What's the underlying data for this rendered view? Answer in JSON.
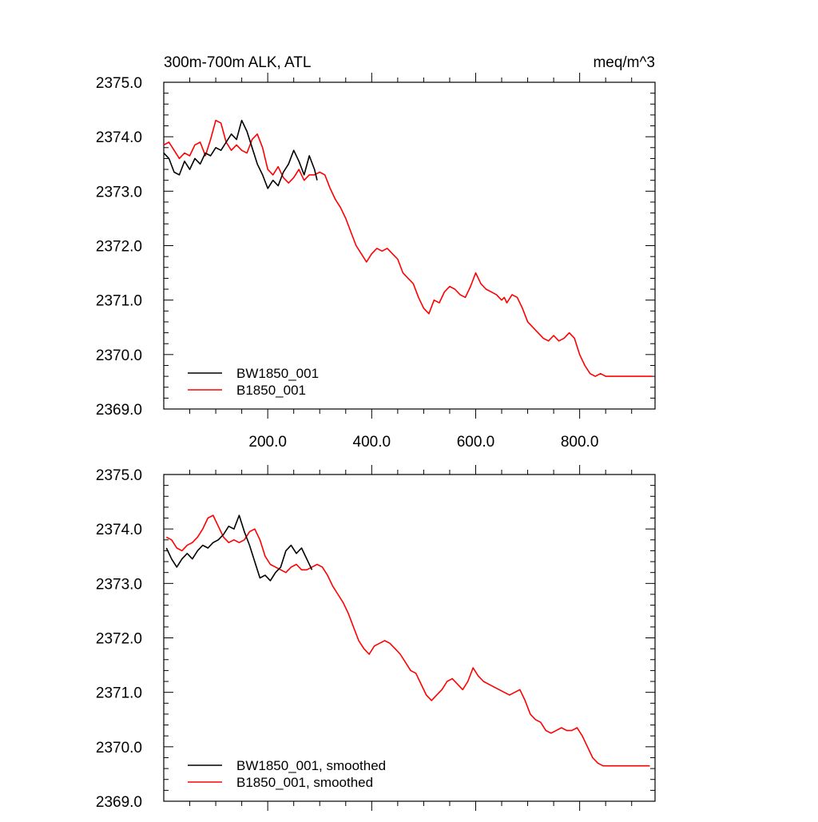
{
  "figure": {
    "title_left": "300m-700m ALK, ATL",
    "title_right": "meq/m^3"
  },
  "chart_data": [
    {
      "type": "line",
      "panel": "top",
      "title": "300m-700m ALK, ATL",
      "units": "meq/m^3",
      "xlim": [
        0,
        945
      ],
      "ylim": [
        2369.0,
        2375.0
      ],
      "xticks": [
        200,
        400,
        600,
        800
      ],
      "xtick_labels": [
        "200.0",
        "400.0",
        "600.0",
        "800.0"
      ],
      "yticks": [
        2369,
        2370,
        2371,
        2372,
        2373,
        2374,
        2375
      ],
      "ytick_labels": [
        "2369.0",
        "2370.0",
        "2371.0",
        "2372.0",
        "2373.0",
        "2374.0",
        "2375.0"
      ],
      "legend": "bottom-left",
      "series": [
        {
          "name": "BW1850_001",
          "color": "#000000",
          "x": [
            0,
            10,
            20,
            30,
            40,
            50,
            60,
            70,
            80,
            90,
            100,
            110,
            120,
            130,
            140,
            150,
            160,
            170,
            180,
            190,
            200,
            210,
            220,
            230,
            240,
            250,
            260,
            270,
            280,
            290,
            295
          ],
          "y": [
            2373.7,
            2373.6,
            2373.35,
            2373.3,
            2373.55,
            2373.4,
            2373.6,
            2373.5,
            2373.7,
            2373.65,
            2373.8,
            2373.75,
            2373.9,
            2374.05,
            2373.95,
            2374.3,
            2374.1,
            2373.8,
            2373.5,
            2373.3,
            2373.05,
            2373.2,
            2373.1,
            2373.35,
            2373.5,
            2373.75,
            2373.55,
            2373.3,
            2373.65,
            2373.4,
            2373.2
          ]
        },
        {
          "name": "B1850_001",
          "color": "#ff0000",
          "x": [
            0,
            10,
            20,
            30,
            40,
            50,
            60,
            70,
            80,
            90,
            100,
            110,
            120,
            130,
            140,
            150,
            160,
            170,
            180,
            190,
            200,
            210,
            220,
            230,
            240,
            250,
            260,
            270,
            280,
            290,
            300,
            310,
            320,
            330,
            340,
            350,
            360,
            370,
            380,
            390,
            400,
            410,
            420,
            430,
            440,
            450,
            460,
            470,
            480,
            490,
            500,
            510,
            520,
            530,
            540,
            550,
            560,
            570,
            580,
            590,
            600,
            610,
            620,
            630,
            640,
            650,
            655,
            660,
            670,
            680,
            690,
            700,
            710,
            720,
            730,
            740,
            750,
            760,
            770,
            780,
            790,
            800,
            810,
            820,
            830,
            840,
            850,
            860,
            870,
            880,
            890,
            900,
            910,
            920,
            930,
            940
          ],
          "y": [
            2373.85,
            2373.9,
            2373.75,
            2373.6,
            2373.7,
            2373.65,
            2373.85,
            2373.9,
            2373.65,
            2373.95,
            2374.3,
            2374.25,
            2373.9,
            2373.75,
            2373.85,
            2373.75,
            2373.7,
            2373.95,
            2374.05,
            2373.8,
            2373.4,
            2373.3,
            2373.45,
            2373.25,
            2373.15,
            2373.25,
            2373.4,
            2373.2,
            2373.3,
            2373.3,
            2373.35,
            2373.3,
            2373.05,
            2372.85,
            2372.7,
            2372.5,
            2372.25,
            2372.0,
            2371.85,
            2371.7,
            2371.85,
            2371.95,
            2371.9,
            2371.95,
            2371.85,
            2371.75,
            2371.5,
            2371.4,
            2371.3,
            2371.05,
            2370.85,
            2370.75,
            2371.0,
            2370.95,
            2371.15,
            2371.25,
            2371.2,
            2371.1,
            2371.05,
            2371.25,
            2371.5,
            2371.3,
            2371.2,
            2371.15,
            2371.1,
            2371.0,
            2371.05,
            2370.95,
            2371.1,
            2371.05,
            2370.85,
            2370.6,
            2370.5,
            2370.4,
            2370.3,
            2370.25,
            2370.35,
            2370.25,
            2370.3,
            2370.4,
            2370.3,
            2370.0,
            2369.8,
            2369.65,
            2369.6,
            2369.65,
            2369.6,
            2369.6,
            2369.6,
            2369.6,
            2369.6,
            2369.6,
            2369.6,
            2369.6,
            2369.6,
            2369.6
          ]
        }
      ]
    },
    {
      "type": "line",
      "panel": "bottom",
      "xlim": [
        0,
        945
      ],
      "ylim": [
        2369.0,
        2375.0
      ],
      "xticks": [
        200,
        400,
        600,
        800
      ],
      "yticks": [
        2369,
        2370,
        2371,
        2372,
        2373,
        2374,
        2375
      ],
      "ytick_labels": [
        "2369.0",
        "2370.0",
        "2371.0",
        "2372.0",
        "2373.0",
        "2374.0",
        "2375.0"
      ],
      "legend": "bottom-left",
      "series": [
        {
          "name": "BW1850_001, smoothed",
          "color": "#000000",
          "x": [
            5,
            15,
            25,
            35,
            45,
            55,
            65,
            75,
            85,
            95,
            105,
            115,
            125,
            135,
            145,
            155,
            165,
            175,
            185,
            195,
            205,
            215,
            225,
            235,
            245,
            255,
            265,
            275,
            285
          ],
          "y": [
            2373.65,
            2373.45,
            2373.3,
            2373.45,
            2373.55,
            2373.45,
            2373.6,
            2373.7,
            2373.65,
            2373.75,
            2373.8,
            2373.9,
            2374.05,
            2374.0,
            2374.25,
            2373.95,
            2373.7,
            2373.4,
            2373.1,
            2373.15,
            2373.05,
            2373.2,
            2373.3,
            2373.6,
            2373.7,
            2373.55,
            2373.65,
            2373.45,
            2373.25
          ]
        },
        {
          "name": "B1850_001, smoothed",
          "color": "#ff0000",
          "x": [
            5,
            15,
            25,
            35,
            45,
            55,
            65,
            75,
            85,
            95,
            105,
            115,
            125,
            135,
            145,
            155,
            165,
            175,
            185,
            195,
            205,
            215,
            225,
            235,
            245,
            255,
            265,
            275,
            285,
            295,
            305,
            315,
            325,
            335,
            345,
            355,
            365,
            375,
            385,
            395,
            405,
            415,
            425,
            435,
            445,
            455,
            465,
            475,
            485,
            495,
            505,
            515,
            525,
            535,
            545,
            555,
            565,
            575,
            585,
            595,
            605,
            615,
            625,
            635,
            645,
            655,
            665,
            675,
            685,
            695,
            705,
            715,
            725,
            735,
            745,
            755,
            765,
            775,
            785,
            795,
            805,
            815,
            825,
            835,
            845,
            855,
            865,
            875,
            885,
            895,
            905,
            915,
            925,
            935
          ],
          "y": [
            2373.85,
            2373.8,
            2373.65,
            2373.6,
            2373.7,
            2373.75,
            2373.85,
            2374.0,
            2374.2,
            2374.25,
            2374.05,
            2373.85,
            2373.75,
            2373.8,
            2373.75,
            2373.8,
            2373.95,
            2374.0,
            2373.8,
            2373.5,
            2373.35,
            2373.3,
            2373.25,
            2373.2,
            2373.3,
            2373.35,
            2373.25,
            2373.25,
            2373.3,
            2373.35,
            2373.3,
            2373.15,
            2372.95,
            2372.8,
            2372.65,
            2372.45,
            2372.2,
            2371.95,
            2371.8,
            2371.7,
            2371.85,
            2371.9,
            2371.95,
            2371.9,
            2371.8,
            2371.7,
            2371.55,
            2371.4,
            2371.35,
            2371.15,
            2370.95,
            2370.85,
            2370.95,
            2371.05,
            2371.2,
            2371.25,
            2371.15,
            2371.05,
            2371.2,
            2371.45,
            2371.3,
            2371.2,
            2371.15,
            2371.1,
            2371.05,
            2371.0,
            2370.95,
            2371.0,
            2371.05,
            2370.85,
            2370.6,
            2370.5,
            2370.45,
            2370.3,
            2370.25,
            2370.3,
            2370.35,
            2370.3,
            2370.3,
            2370.35,
            2370.2,
            2370.0,
            2369.8,
            2369.7,
            2369.65,
            2369.65,
            2369.65,
            2369.65,
            2369.65,
            2369.65,
            2369.65,
            2369.65,
            2369.65,
            2369.65
          ]
        }
      ]
    }
  ]
}
